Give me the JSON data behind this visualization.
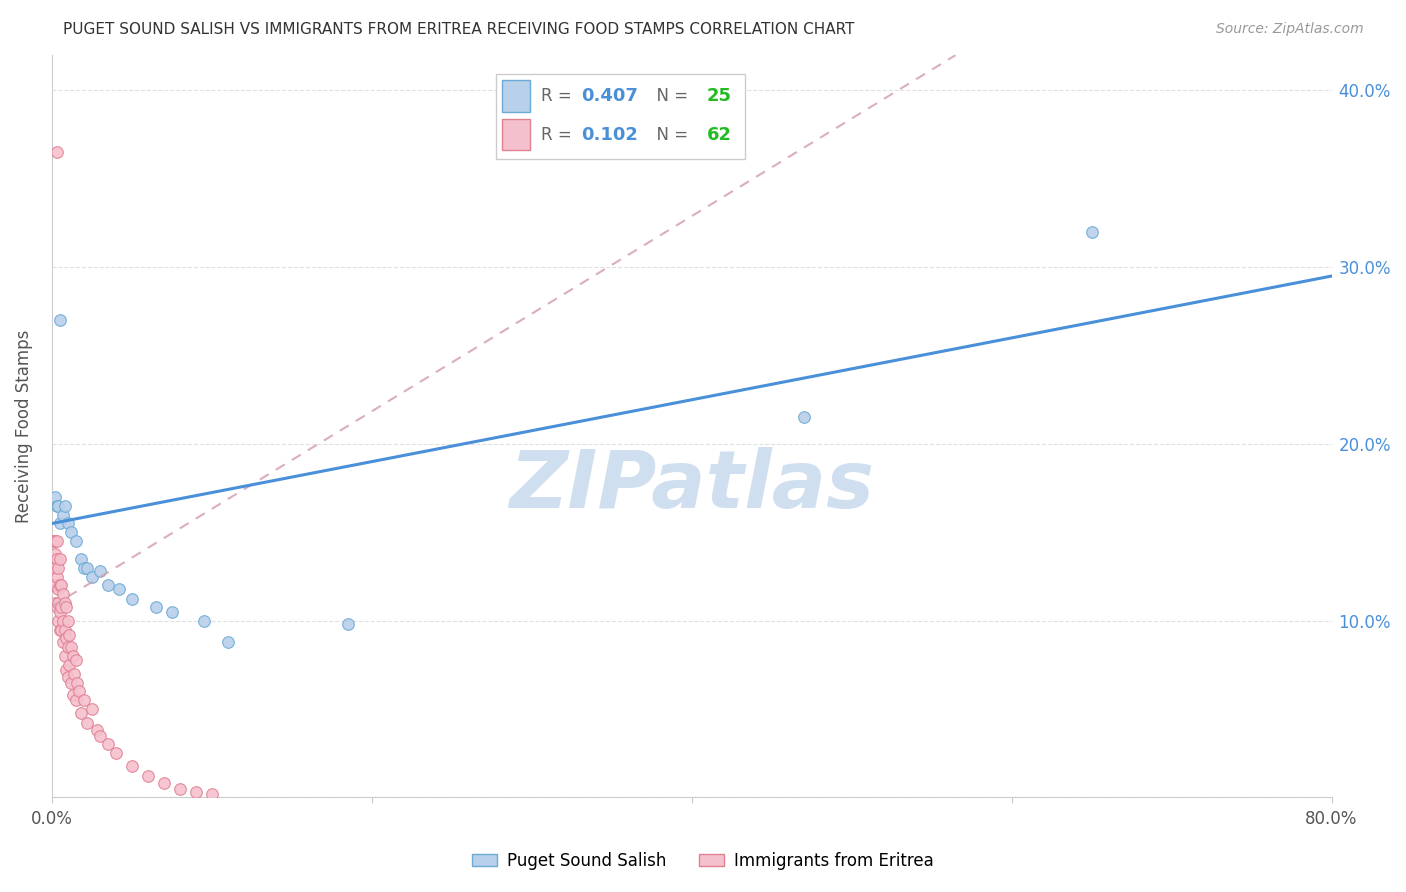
{
  "title": "PUGET SOUND SALISH VS IMMIGRANTS FROM ERITREA RECEIVING FOOD STAMPS CORRELATION CHART",
  "source": "Source: ZipAtlas.com",
  "ylabel": "Receiving Food Stamps",
  "xlim": [
    0.0,
    0.8
  ],
  "ylim": [
    0.0,
    0.42
  ],
  "ytick_vals": [
    0.0,
    0.1,
    0.2,
    0.3,
    0.4
  ],
  "ytick_labels_right": [
    "",
    "10.0%",
    "20.0%",
    "30.0%",
    "40.0%"
  ],
  "xtick_vals": [
    0.0,
    0.2,
    0.4,
    0.6,
    0.8
  ],
  "xtick_labels": [
    "0.0%",
    "",
    "",
    "",
    "80.0%"
  ],
  "blue_r": 0.407,
  "blue_n": 25,
  "pink_r": 0.102,
  "pink_n": 62,
  "blue_scatter_color": "#b8d0ea",
  "blue_edge_color": "#6aaad4",
  "pink_scatter_color": "#f5c0ce",
  "pink_edge_color": "#e08090",
  "blue_line_color": "#4a90d9",
  "pink_line_color": "#d4a0b0",
  "axis_label_color": "#555555",
  "right_tick_color": "#4a90d9",
  "grid_color": "#e0e0e0",
  "watermark_text": "ZIPatlas",
  "watermark_color": "#d0dff0",
  "blue_line_x": [
    0.0,
    0.8
  ],
  "blue_line_y": [
    0.155,
    0.295
  ],
  "pink_line_x": [
    0.0,
    0.565
  ],
  "pink_line_y": [
    0.108,
    0.42
  ],
  "blue_x": [
    0.002,
    0.003,
    0.004,
    0.005,
    0.007,
    0.008,
    0.01,
    0.012,
    0.015,
    0.018,
    0.02,
    0.022,
    0.025,
    0.03,
    0.035,
    0.042,
    0.05,
    0.065,
    0.075,
    0.095,
    0.11,
    0.185,
    0.47,
    0.65,
    0.005
  ],
  "blue_y": [
    0.17,
    0.165,
    0.165,
    0.155,
    0.16,
    0.165,
    0.155,
    0.15,
    0.145,
    0.135,
    0.13,
    0.13,
    0.125,
    0.128,
    0.12,
    0.118,
    0.112,
    0.108,
    0.105,
    0.1,
    0.088,
    0.098,
    0.215,
    0.32,
    0.27
  ],
  "pink_x": [
    0.001,
    0.001,
    0.001,
    0.001,
    0.002,
    0.002,
    0.002,
    0.002,
    0.002,
    0.003,
    0.003,
    0.003,
    0.003,
    0.004,
    0.004,
    0.004,
    0.004,
    0.005,
    0.005,
    0.005,
    0.005,
    0.006,
    0.006,
    0.006,
    0.007,
    0.007,
    0.007,
    0.008,
    0.008,
    0.008,
    0.009,
    0.009,
    0.009,
    0.01,
    0.01,
    0.01,
    0.011,
    0.011,
    0.012,
    0.012,
    0.013,
    0.013,
    0.014,
    0.015,
    0.015,
    0.016,
    0.017,
    0.018,
    0.02,
    0.022,
    0.025,
    0.028,
    0.03,
    0.035,
    0.04,
    0.05,
    0.06,
    0.07,
    0.08,
    0.09,
    0.1,
    0.003
  ],
  "pink_y": [
    0.145,
    0.135,
    0.13,
    0.12,
    0.145,
    0.138,
    0.13,
    0.12,
    0.11,
    0.145,
    0.135,
    0.125,
    0.108,
    0.13,
    0.118,
    0.11,
    0.1,
    0.135,
    0.12,
    0.105,
    0.095,
    0.12,
    0.108,
    0.095,
    0.115,
    0.1,
    0.088,
    0.11,
    0.095,
    0.08,
    0.108,
    0.09,
    0.072,
    0.1,
    0.085,
    0.068,
    0.092,
    0.075,
    0.085,
    0.065,
    0.08,
    0.058,
    0.07,
    0.078,
    0.055,
    0.065,
    0.06,
    0.048,
    0.055,
    0.042,
    0.05,
    0.038,
    0.035,
    0.03,
    0.025,
    0.018,
    0.012,
    0.008,
    0.005,
    0.003,
    0.002,
    0.365
  ],
  "legend_blue_label": "R =  0.407   N = 25",
  "legend_pink_label": "R =  0.102   N = 62",
  "bottom_legend_labels": [
    "Puget Sound Salish",
    "Immigrants from Eritrea"
  ]
}
